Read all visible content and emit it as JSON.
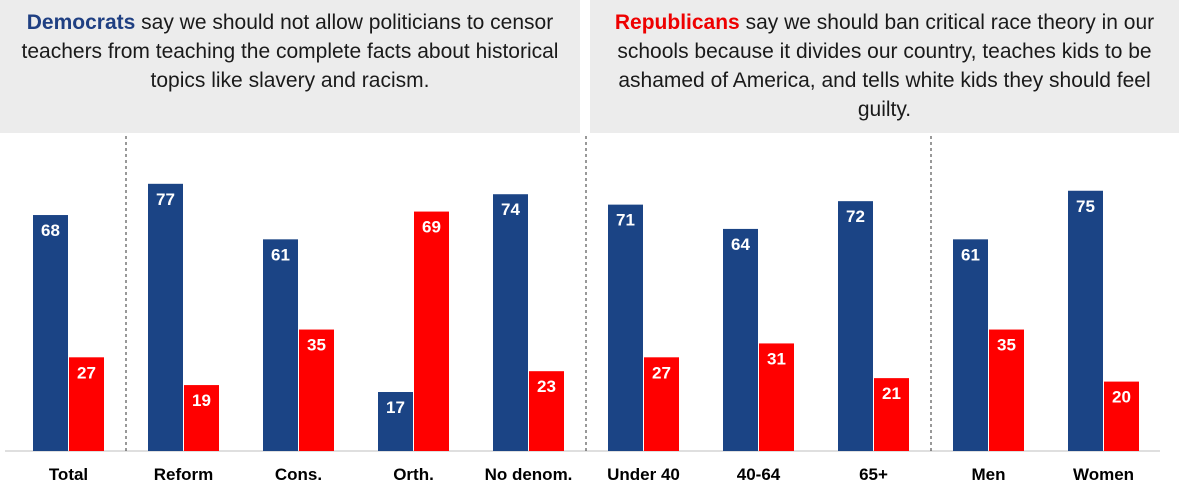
{
  "headers": {
    "left": {
      "party": "Democrats",
      "text": " say we should not allow politicians to censor teachers from teaching the complete facts about historical topics like slavery and racism."
    },
    "right": {
      "party": "Republicans",
      "text": " say we should ban critical race theory in our schools because it divides our country, teaches kids to be ashamed of America, and tells white kids they should feel guilty."
    }
  },
  "chart_data": {
    "type": "bar",
    "categories": [
      "Total",
      "Reform",
      "Cons.",
      "Orth.",
      "No denom.",
      "Under 40",
      "40-64",
      "65+",
      "Men",
      "Women"
    ],
    "series": [
      {
        "name": "Democrats",
        "color": "#1b4485",
        "values": [
          68,
          77,
          61,
          17,
          74,
          71,
          64,
          72,
          61,
          75
        ]
      },
      {
        "name": "Republicans",
        "color": "#ff0000",
        "values": [
          27,
          19,
          35,
          69,
          23,
          27,
          31,
          21,
          35,
          20
        ]
      }
    ],
    "group_dividers_after": [
      "Total",
      "No denom.",
      "65+"
    ],
    "ylim": [
      0,
      100
    ],
    "grid": false,
    "xlabel": "",
    "ylabel": ""
  }
}
